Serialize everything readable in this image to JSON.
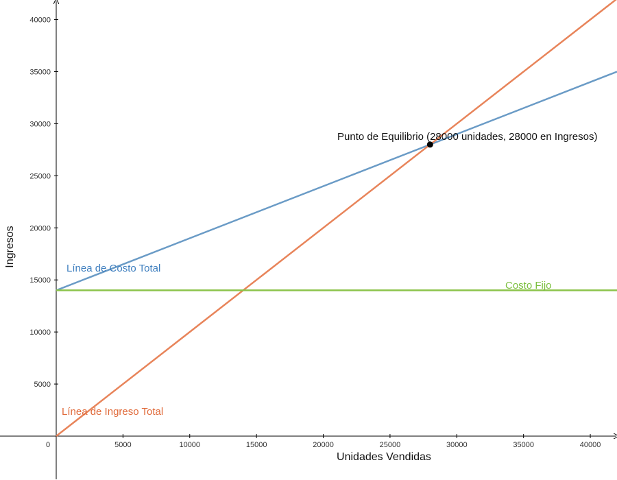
{
  "chart_data": {
    "type": "line",
    "xlabel": "Unidades Vendidas",
    "ylabel": "Ingresos",
    "xlim": [
      0,
      42000
    ],
    "ylim": [
      -4000,
      42000
    ],
    "x_ticks": [
      0,
      5000,
      10000,
      15000,
      20000,
      25000,
      30000,
      35000,
      40000
    ],
    "y_ticks": [
      5000,
      10000,
      15000,
      20000,
      25000,
      30000,
      35000,
      40000
    ],
    "x_tick_labels": [
      "0",
      "5000",
      "10000",
      "15000",
      "20000",
      "25000",
      "30000",
      "35000",
      "40000"
    ],
    "y_tick_labels": [
      "5000",
      "10000",
      "15000",
      "20000",
      "25000",
      "30000",
      "35000",
      "40000"
    ],
    "grid": false,
    "series": [
      {
        "name": "Línea de Costo Total",
        "color": "#6a9bc6",
        "x": [
          0,
          42000
        ],
        "y": [
          14000,
          35000
        ]
      },
      {
        "name": "Línea de Ingreso Total",
        "color": "#e8845a",
        "x": [
          0,
          42000
        ],
        "y": [
          0,
          42000
        ]
      },
      {
        "name": "Costo Fijo",
        "color": "#8bc34a",
        "x": [
          0,
          42000
        ],
        "y": [
          14000,
          14000
        ]
      }
    ],
    "series_label_colors": [
      "#3f7fbf",
      "#e06a3a",
      "#7cbf3f"
    ],
    "annotations": [
      {
        "text": "Punto de Equilibrio (28000 unidades, 28000 en Ingresos)",
        "x": 28000,
        "y": 28000,
        "marker_color": "#000000"
      }
    ]
  }
}
